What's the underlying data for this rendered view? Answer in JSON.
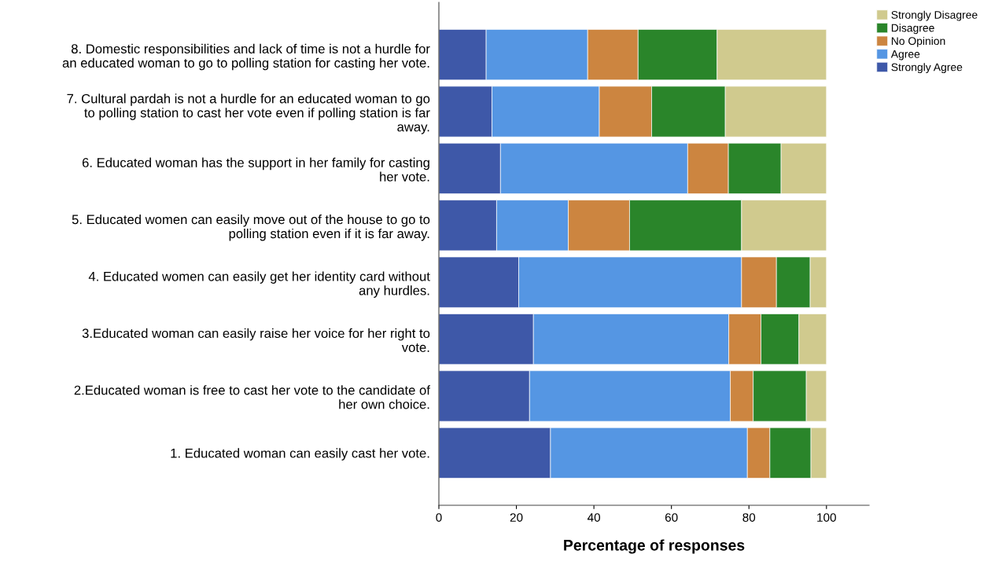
{
  "chart_data": {
    "type": "bar",
    "orientation": "horizontal",
    "stacked": true,
    "categories": [
      "8. Domestic responsibilities and lack of time is not a hurdle for\nan educated woman to go to polling station for casting her vote.",
      "7. Cultural pardah is not a hurdle for an educated woman to go\nto polling station to cast her vote even if polling station is far\naway.",
      "6. Educated woman has the support in her family for casting\nher vote.",
      "5. Educated women can easily move out of the house to go to\npolling station even if it is far away.",
      "4. Educated women can easily get her identity card without\nany hurdles.",
      "3.Educated woman can easily raise her voice for her right to\nvote.",
      "2.Educated woman is free to cast her vote to the candidate of\nher own choice.",
      "1. Educated woman can easily cast her vote."
    ],
    "series": [
      {
        "name": "Strongly Agree",
        "color": "#3e58a8",
        "values": [
          12.2,
          13.7,
          15.9,
          14.9,
          20.6,
          24.4,
          23.4,
          28.8
        ]
      },
      {
        "name": "Agree",
        "color": "#5596e3",
        "values": [
          26.2,
          27.7,
          48.3,
          18.5,
          57.5,
          50.4,
          51.8,
          50.8
        ]
      },
      {
        "name": "No Opinion",
        "color": "#cc8540",
        "values": [
          13.0,
          13.5,
          10.5,
          15.8,
          9.0,
          8.3,
          5.9,
          5.8
        ]
      },
      {
        "name": "Disagree",
        "color": "#2a852a",
        "values": [
          20.4,
          19.0,
          13.6,
          28.9,
          8.7,
          9.8,
          13.7,
          10.6
        ]
      },
      {
        "name": "Strongly Disagree",
        "color": "#d0ca8e",
        "values": [
          28.2,
          26.1,
          11.7,
          21.9,
          4.2,
          7.1,
          5.2,
          4.0
        ]
      }
    ],
    "xlabel": "Percentage of responses",
    "xlim": [
      0,
      111
    ],
    "xticks": [
      0,
      20,
      40,
      60,
      80,
      100
    ],
    "grid": false,
    "legend": "top right"
  }
}
